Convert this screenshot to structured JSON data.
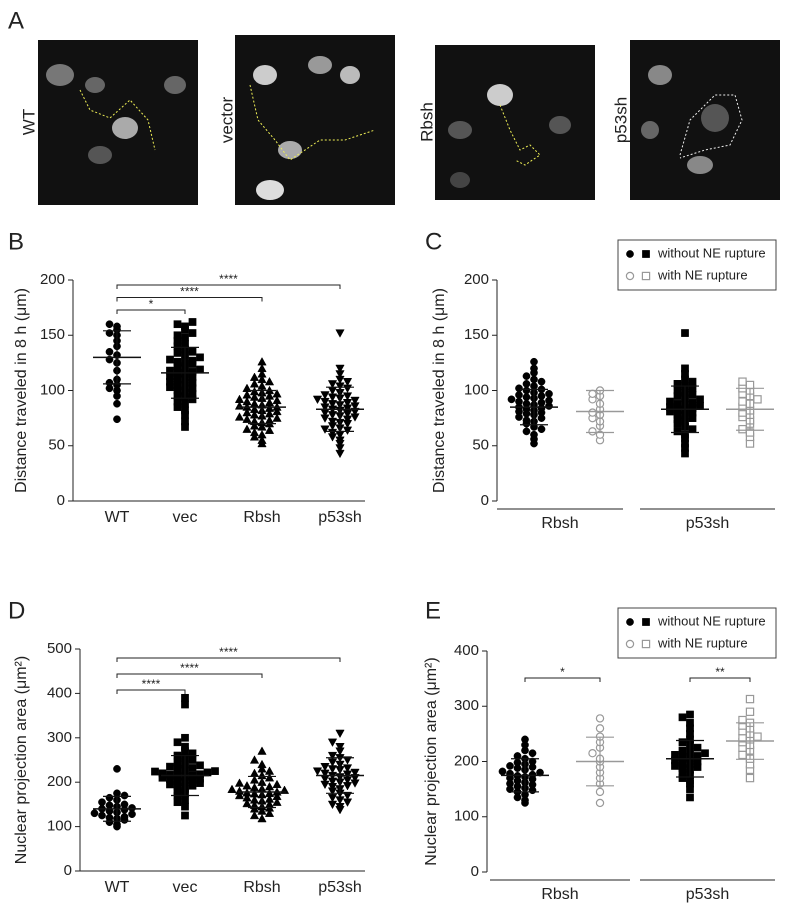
{
  "panel_labels": [
    "A",
    "B",
    "C",
    "D",
    "E"
  ],
  "images": {
    "labels": [
      "WT",
      "vector",
      "Rbsh",
      "p53sh"
    ]
  },
  "chart_data": [
    {
      "type": "dotplot",
      "ylabel": "Distance traveled in 8 h (μm)",
      "ylim": [
        0,
        200
      ],
      "yticks": [
        0,
        50,
        100,
        150,
        200
      ],
      "groups": [
        {
          "name": "WT",
          "marker": "circle",
          "color": "#000000",
          "filled": true,
          "mean": 130,
          "sd": 24,
          "values": [
            74,
            88,
            95,
            100,
            102,
            105,
            107,
            110,
            118,
            125,
            128,
            132,
            135,
            140,
            145,
            150,
            152,
            155,
            158,
            160
          ]
        },
        {
          "name": "vec",
          "marker": "square",
          "color": "#000000",
          "filled": true,
          "mean": 116,
          "sd": 23,
          "values": [
            67,
            72,
            78,
            82,
            85,
            88,
            90,
            92,
            94,
            95,
            97,
            98,
            100,
            102,
            103,
            104,
            105,
            107,
            108,
            110,
            111,
            112,
            113,
            115,
            116,
            117,
            118,
            119,
            120,
            122,
            124,
            125,
            126,
            127,
            128,
            130,
            132,
            134,
            135,
            137,
            140,
            142,
            145,
            148,
            150,
            152,
            155,
            158,
            160,
            162
          ]
        },
        {
          "name": "Rbsh",
          "marker": "triangle-up",
          "color": "#000000",
          "filled": true,
          "mean": 85,
          "sd": 15,
          "values": [
            52,
            55,
            58,
            60,
            62,
            64,
            65,
            67,
            68,
            70,
            71,
            72,
            73,
            74,
            75,
            76,
            77,
            78,
            79,
            80,
            81,
            82,
            83,
            84,
            85,
            85,
            86,
            87,
            88,
            89,
            90,
            91,
            92,
            93,
            94,
            95,
            96,
            97,
            98,
            99,
            100,
            102,
            104,
            106,
            108,
            110,
            112,
            115,
            120,
            126
          ]
        },
        {
          "name": "p53sh",
          "marker": "triangle-down",
          "color": "#000000",
          "filled": true,
          "mean": 83,
          "sd": 20,
          "values": [
            43,
            48,
            52,
            55,
            58,
            60,
            62,
            64,
            65,
            66,
            68,
            70,
            71,
            72,
            74,
            75,
            76,
            77,
            78,
            79,
            80,
            81,
            82,
            83,
            84,
            85,
            86,
            87,
            88,
            89,
            90,
            91,
            92,
            93,
            94,
            95,
            96,
            98,
            100,
            102,
            104,
            106,
            108,
            110,
            115,
            120,
            152
          ]
        }
      ],
      "significance": [
        {
          "groups": [
            0,
            1
          ],
          "label": "*"
        },
        {
          "groups": [
            0,
            2
          ],
          "label": "****"
        },
        {
          "groups": [
            0,
            3
          ],
          "label": "****"
        }
      ]
    },
    {
      "type": "dotplot",
      "ylabel": "Distance traveled in 8 h (μm)",
      "ylim": [
        0,
        200
      ],
      "yticks": [
        0,
        50,
        100,
        150,
        200
      ],
      "categories": [
        "Rbsh",
        "p53sh"
      ],
      "legend": [
        {
          "name": "without NE rupture",
          "color": "#000000",
          "filled": true
        },
        {
          "name": "with NE rupture",
          "color": "#999999",
          "filled": false
        }
      ],
      "groups": [
        {
          "category": 0,
          "marker": "circle",
          "color": "#000000",
          "filled": true,
          "mean": 85,
          "sd": 16,
          "values": [
            52,
            56,
            60,
            63,
            65,
            67,
            70,
            72,
            73,
            75,
            76,
            78,
            79,
            80,
            81,
            82,
            83,
            84,
            85,
            86,
            87,
            88,
            89,
            90,
            91,
            92,
            93,
            94,
            95,
            96,
            97,
            98,
            100,
            101,
            102,
            104,
            106,
            108,
            110,
            113,
            116,
            120,
            126
          ]
        },
        {
          "category": 0,
          "marker": "circle",
          "color": "#999999",
          "filled": false,
          "mean": 81,
          "sd": 19,
          "values": [
            55,
            60,
            63,
            68,
            72,
            75,
            78,
            80,
            83,
            88,
            92,
            95,
            97,
            100
          ]
        },
        {
          "category": 1,
          "marker": "square",
          "color": "#000000",
          "filled": true,
          "mean": 83,
          "sd": 21,
          "values": [
            43,
            48,
            52,
            57,
            60,
            63,
            65,
            67,
            70,
            72,
            74,
            75,
            77,
            78,
            80,
            81,
            82,
            83,
            84,
            85,
            86,
            87,
            88,
            89,
            90,
            92,
            93,
            95,
            96,
            98,
            100,
            102,
            104,
            106,
            108,
            110,
            115,
            120,
            152
          ]
        },
        {
          "category": 1,
          "marker": "square",
          "color": "#999999",
          "filled": false,
          "mean": 83,
          "sd": 19,
          "values": [
            52,
            58,
            62,
            65,
            70,
            73,
            76,
            78,
            80,
            82,
            85,
            88,
            90,
            92,
            95,
            97,
            100,
            102,
            105,
            108
          ]
        }
      ]
    },
    {
      "type": "dotplot",
      "ylabel": "Nuclear projection area (μm²)",
      "ylim": [
        0,
        500
      ],
      "yticks": [
        0,
        100,
        200,
        300,
        400,
        500
      ],
      "groups": [
        {
          "name": "WT",
          "marker": "circle",
          "color": "#000000",
          "filled": true,
          "mean": 140,
          "sd": 28,
          "values": [
            100,
            105,
            110,
            115,
            118,
            120,
            122,
            125,
            128,
            130,
            132,
            135,
            138,
            140,
            142,
            145,
            148,
            150,
            155,
            160,
            165,
            170,
            175,
            230
          ]
        },
        {
          "name": "vec",
          "marker": "square",
          "color": "#000000",
          "filled": true,
          "mean": 215,
          "sd": 45,
          "values": [
            125,
            145,
            155,
            160,
            170,
            175,
            180,
            185,
            190,
            192,
            195,
            198,
            200,
            202,
            205,
            207,
            208,
            210,
            212,
            214,
            215,
            217,
            218,
            220,
            222,
            224,
            225,
            227,
            230,
            232,
            235,
            238,
            240,
            245,
            250,
            255,
            260,
            265,
            270,
            280,
            290,
            300,
            375,
            390
          ]
        },
        {
          "name": "Rbsh",
          "marker": "triangle-up",
          "color": "#000000",
          "filled": true,
          "mean": 178,
          "sd": 35,
          "values": [
            118,
            125,
            130,
            135,
            140,
            142,
            145,
            148,
            150,
            152,
            155,
            158,
            160,
            162,
            165,
            168,
            170,
            172,
            174,
            175,
            176,
            178,
            180,
            182,
            184,
            185,
            188,
            190,
            192,
            195,
            198,
            200,
            205,
            210,
            215,
            220,
            225,
            230,
            240,
            250,
            270
          ]
        },
        {
          "name": "p53sh",
          "marker": "triangle-down",
          "color": "#000000",
          "filled": true,
          "mean": 215,
          "sd": 40,
          "values": [
            138,
            145,
            150,
            155,
            160,
            165,
            170,
            175,
            180,
            185,
            190,
            192,
            195,
            198,
            200,
            202,
            205,
            208,
            210,
            212,
            215,
            218,
            220,
            222,
            225,
            228,
            230,
            232,
            235,
            240,
            245,
            250,
            255,
            260,
            270,
            280,
            290,
            310
          ]
        }
      ],
      "significance": [
        {
          "groups": [
            0,
            1
          ],
          "label": "****"
        },
        {
          "groups": [
            0,
            2
          ],
          "label": "****"
        },
        {
          "groups": [
            0,
            3
          ],
          "label": "****"
        }
      ]
    },
    {
      "type": "dotplot",
      "ylabel": "Nuclear projection area (μm²)",
      "ylim": [
        0,
        400
      ],
      "yticks": [
        0,
        100,
        200,
        300,
        400
      ],
      "categories": [
        "Rbsh",
        "p53sh"
      ],
      "legend": [
        {
          "name": "without NE rupture",
          "color": "#000000",
          "filled": true
        },
        {
          "name": "with NE rupture",
          "color": "#999999",
          "filled": false
        }
      ],
      "groups": [
        {
          "category": 0,
          "marker": "circle",
          "color": "#000000",
          "filled": true,
          "mean": 175,
          "sd": 30,
          "values": [
            125,
            130,
            135,
            140,
            145,
            148,
            150,
            152,
            155,
            158,
            160,
            162,
            165,
            168,
            170,
            172,
            174,
            176,
            178,
            180,
            182,
            185,
            188,
            190,
            192,
            195,
            198,
            200,
            205,
            210,
            215,
            220,
            230,
            240
          ]
        },
        {
          "category": 0,
          "marker": "circle",
          "color": "#999999",
          "filled": false,
          "mean": 200,
          "sd": 44,
          "values": [
            125,
            145,
            160,
            170,
            180,
            190,
            200,
            205,
            215,
            225,
            235,
            245,
            260,
            278
          ]
        },
        {
          "category": 1,
          "marker": "square",
          "color": "#000000",
          "filled": true,
          "mean": 205,
          "sd": 33,
          "values": [
            135,
            150,
            160,
            165,
            170,
            175,
            180,
            185,
            188,
            190,
            192,
            195,
            198,
            200,
            202,
            205,
            208,
            210,
            212,
            215,
            218,
            220,
            225,
            230,
            235,
            240,
            250,
            260,
            270,
            280,
            285
          ]
        },
        {
          "category": 1,
          "marker": "square",
          "color": "#999999",
          "filled": false,
          "mean": 237,
          "sd": 33,
          "values": [
            170,
            185,
            195,
            205,
            212,
            220,
            225,
            230,
            235,
            240,
            242,
            245,
            250,
            255,
            260,
            265,
            270,
            275,
            290,
            313
          ]
        }
      ],
      "significance": [
        {
          "groups": [
            0,
            1
          ],
          "label": "*"
        },
        {
          "groups": [
            2,
            3
          ],
          "label": "**"
        }
      ]
    }
  ]
}
